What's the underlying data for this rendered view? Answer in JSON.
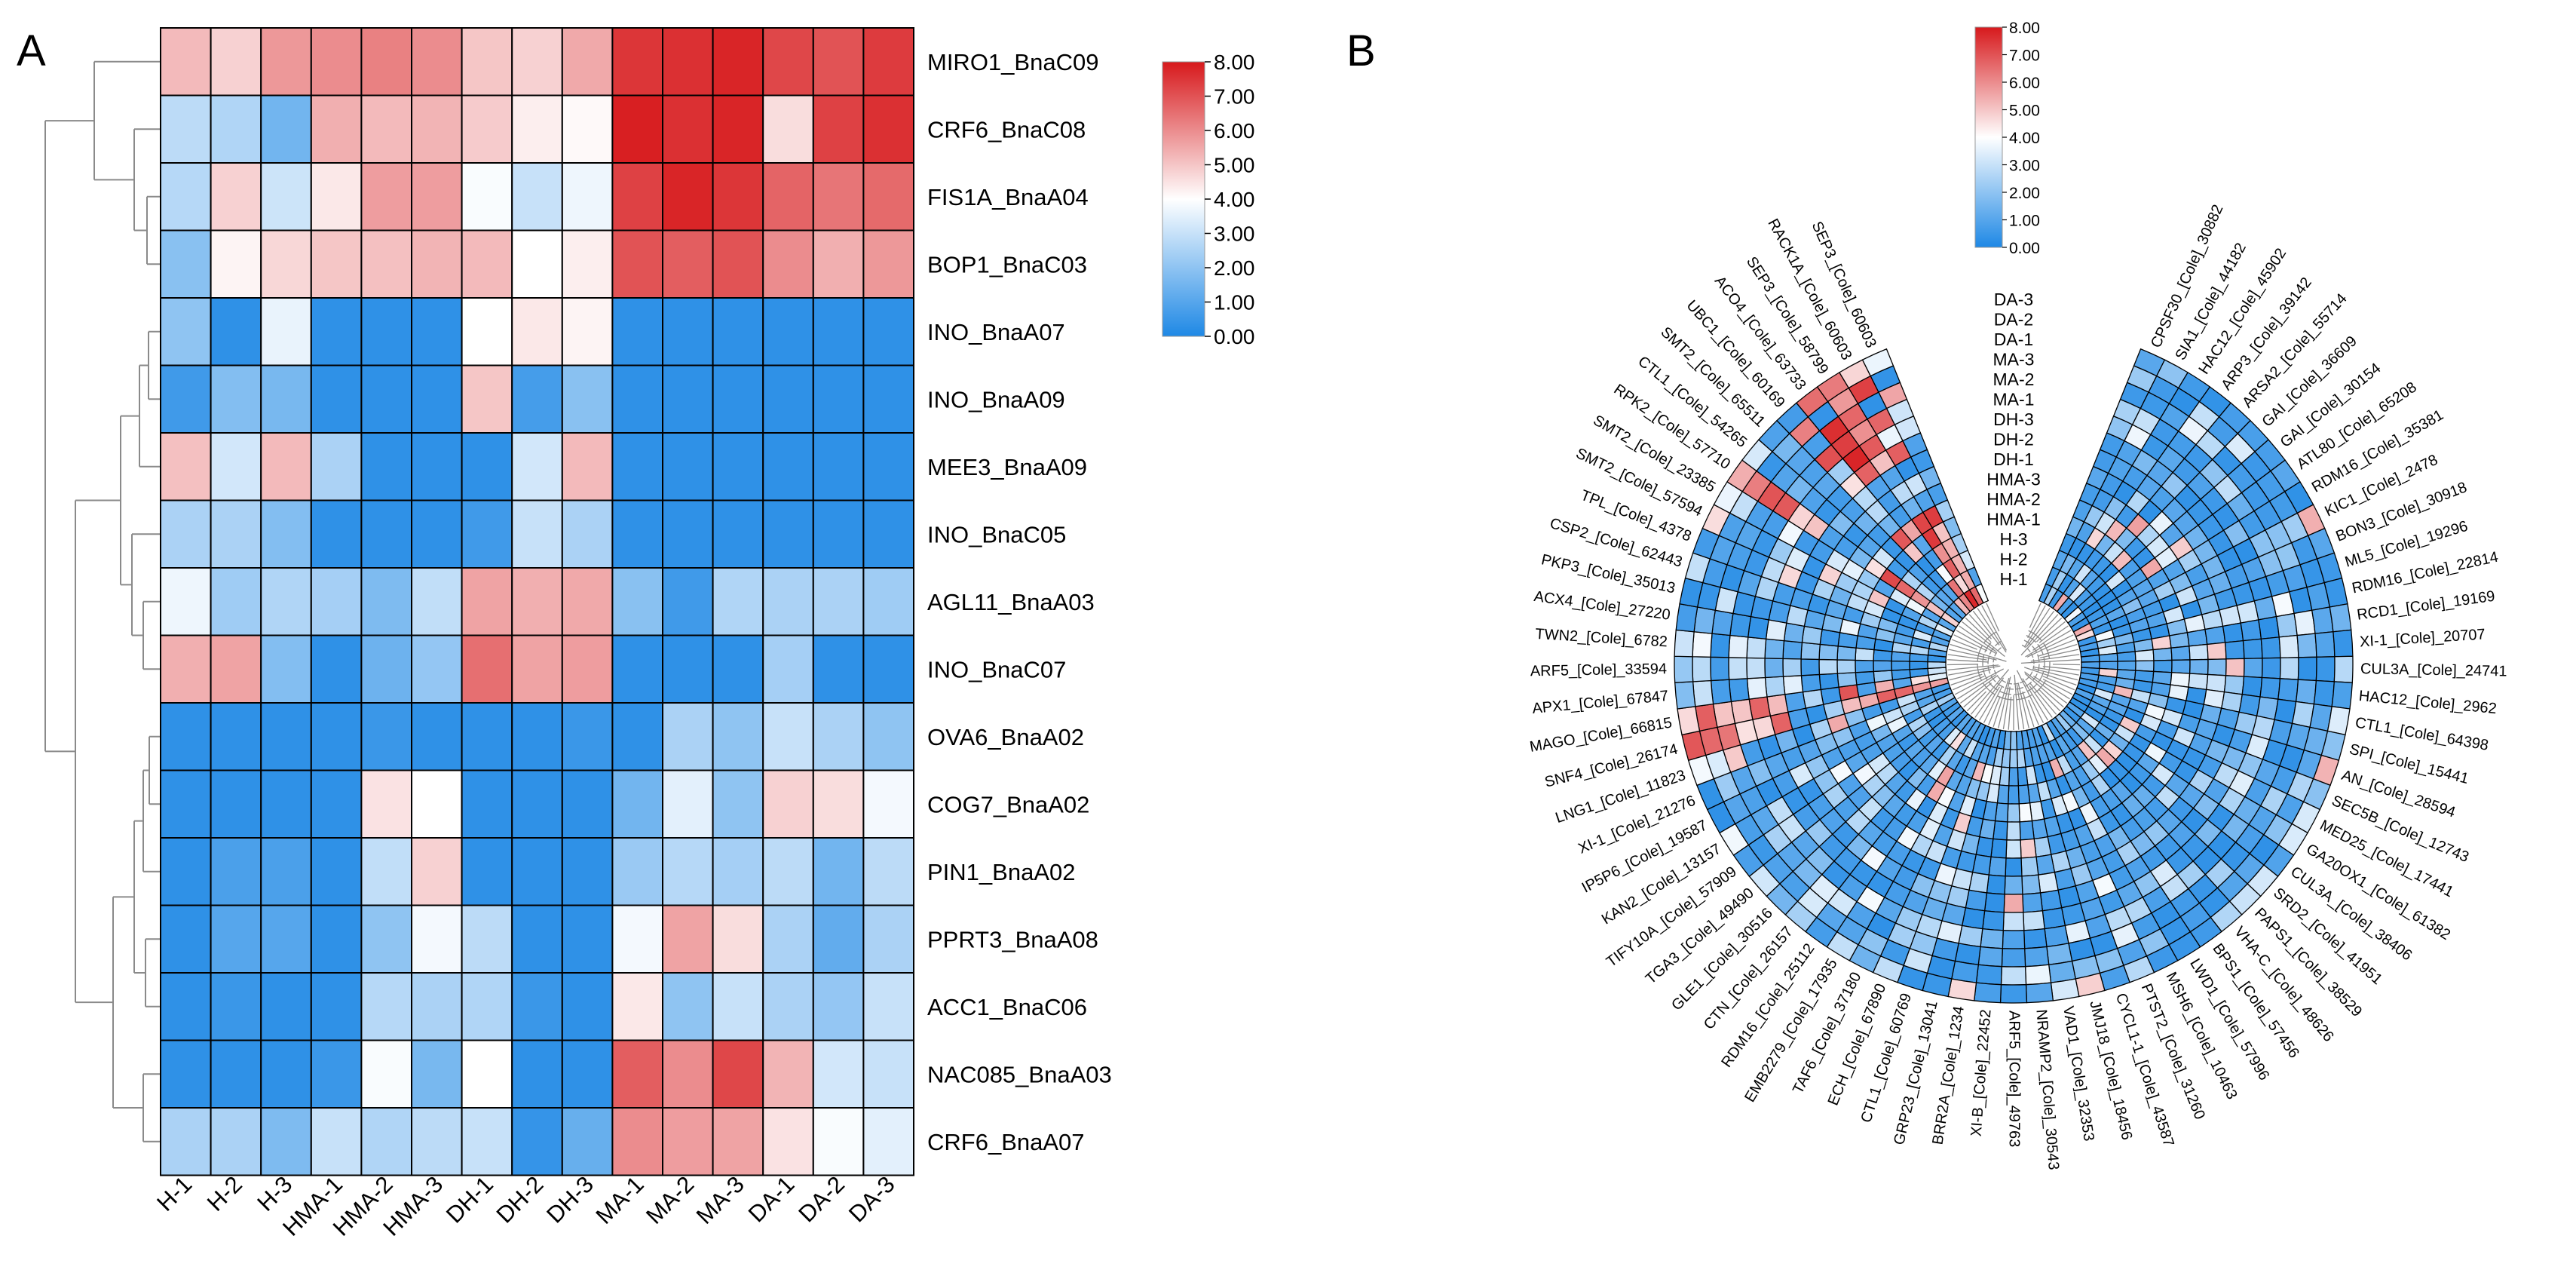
{
  "panels": {
    "a_label": "A",
    "b_label": "B"
  },
  "colors": {
    "low": "#1e88e5",
    "mid": "#ffffff",
    "high": "#d7191c",
    "grid": "#000000"
  },
  "chart_data": [
    {
      "type": "heatmap",
      "title": "",
      "columns": [
        "H-1",
        "H-2",
        "H-3",
        "HMA-1",
        "HMA-2",
        "HMA-3",
        "DH-1",
        "DH-2",
        "DH-3",
        "MA-1",
        "MA-2",
        "MA-3",
        "DA-1",
        "DA-2",
        "DA-3"
      ],
      "rows": [
        "MIRO1_BnaC09",
        "CRF6_BnaC08",
        "FIS1A_BnaA04",
        "BOP1_BnaC03",
        "INO_BnaA07",
        "INO_BnaA09",
        "MEE3_BnaA09",
        "INO_BnaC05",
        "AGL11_BnaA03",
        "INO_BnaC07",
        "OVA6_BnaA02",
        "COG7_BnaA02",
        "PIN1_BnaA02",
        "PPRT3_BnaA08",
        "ACC1_BnaC06",
        "NAC085_BnaA03",
        "CRF6_BnaA07"
      ],
      "values": [
        [
          5.2,
          4.8,
          5.8,
          6.0,
          6.2,
          6.0,
          5.0,
          4.8,
          5.5,
          7.5,
          7.6,
          7.8,
          7.2,
          7.0,
          7.4
        ],
        [
          2.8,
          2.6,
          1.5,
          5.4,
          5.2,
          5.3,
          4.9,
          4.3,
          4.1,
          7.9,
          7.6,
          7.8,
          4.6,
          7.3,
          7.6
        ],
        [
          2.7,
          4.8,
          3.1,
          4.4,
          5.7,
          5.7,
          3.9,
          3.0,
          3.7,
          7.3,
          7.8,
          7.5,
          6.7,
          6.4,
          6.6
        ],
        [
          1.9,
          4.2,
          4.7,
          5.0,
          5.1,
          5.3,
          5.2,
          4.0,
          4.3,
          7.0,
          6.8,
          7.0,
          6.0,
          5.4,
          5.8
        ],
        [
          2.0,
          0.3,
          3.6,
          0.3,
          0.3,
          0.3,
          4.0,
          4.4,
          4.2,
          0.3,
          0.3,
          0.3,
          0.3,
          0.3,
          0.3
        ],
        [
          0.6,
          1.8,
          1.6,
          0.3,
          0.3,
          0.3,
          5.0,
          0.7,
          1.9,
          0.3,
          0.3,
          0.3,
          0.3,
          0.3,
          0.3
        ],
        [
          5.1,
          3.2,
          5.2,
          2.5,
          0.3,
          0.3,
          0.3,
          3.2,
          5.2,
          0.3,
          0.3,
          0.3,
          0.3,
          0.3,
          0.3
        ],
        [
          2.5,
          2.5,
          1.8,
          0.3,
          0.3,
          0.3,
          0.6,
          3.0,
          2.5,
          0.3,
          0.3,
          0.3,
          0.3,
          0.3,
          0.3
        ],
        [
          3.7,
          2.3,
          2.6,
          2.4,
          1.7,
          2.9,
          5.6,
          5.4,
          5.5,
          1.9,
          0.6,
          2.6,
          2.5,
          2.5,
          2.3
        ],
        [
          5.4,
          5.6,
          1.8,
          0.3,
          1.4,
          2.1,
          6.5,
          5.6,
          5.7,
          0.3,
          0.3,
          0.3,
          2.4,
          0.3,
          0.3
        ],
        [
          0.3,
          0.3,
          0.3,
          0.3,
          0.5,
          0.3,
          0.3,
          0.3,
          0.5,
          0.3,
          2.5,
          2.0,
          3.0,
          2.5,
          2.0
        ],
        [
          0.3,
          0.3,
          0.3,
          0.3,
          4.5,
          4.0,
          0.3,
          0.3,
          0.3,
          1.5,
          3.5,
          2.0,
          4.8,
          4.6,
          3.8
        ],
        [
          0.3,
          0.8,
          0.8,
          0.3,
          2.9,
          4.8,
          0.3,
          0.3,
          0.3,
          2.2,
          2.7,
          2.4,
          2.8,
          1.5,
          2.8
        ],
        [
          0.3,
          1.0,
          1.0,
          0.3,
          2.0,
          3.8,
          2.8,
          0.3,
          0.3,
          3.8,
          5.6,
          4.6,
          2.5,
          1.2,
          2.5
        ],
        [
          0.3,
          0.5,
          0.3,
          0.3,
          2.7,
          2.5,
          2.6,
          0.5,
          0.3,
          4.4,
          2.0,
          3.0,
          2.5,
          2.1,
          3.0
        ],
        [
          0.3,
          0.3,
          0.3,
          0.5,
          3.9,
          1.6,
          4.0,
          0.3,
          0.3,
          6.8,
          6.0,
          7.2,
          5.3,
          3.2,
          3.0
        ],
        [
          2.5,
          2.5,
          1.7,
          3.0,
          2.6,
          2.8,
          3.0,
          0.4,
          1.3,
          6.0,
          5.7,
          5.6,
          4.5,
          3.9,
          3.5
        ]
      ],
      "colorbar": {
        "min": 0,
        "max": 8,
        "ticks": [
          "0.00",
          "1.00",
          "2.00",
          "3.00",
          "4.00",
          "5.00",
          "6.00",
          "7.00",
          "8.00"
        ]
      }
    },
    {
      "type": "heatmap",
      "layout": "circular",
      "rings": [
        "H-1",
        "H-2",
        "H-3",
        "HMA-1",
        "HMA-2",
        "HMA-3",
        "DH-1",
        "DH-2",
        "DH-3",
        "MA-1",
        "MA-2",
        "MA-3",
        "DA-1",
        "DA-2",
        "DA-3"
      ],
      "genes": [
        "CPSF30_[Cole]_30882",
        "SIA1_[Cole]_44182",
        "HAC12_[Cole]_45902",
        "ARP3_[Cole]_39142",
        "ARSA2_[Cole]_55714",
        "GAI_[Cole]_36609",
        "GAI_[Cole]_30154",
        "ATL80_[Cole]_65208",
        "RDM16_[Cole]_35381",
        "KIC1_[Cole]_2478",
        "BON3_[Cole]_30918",
        "ML5_[Cole]_19296",
        "RDM16_[Cole]_22814",
        "RCD1_[Cole]_19169",
        "XI-1_[Cole]_20707",
        "CUL3A_[Cole]_24741",
        "HAC12_[Cole]_2962",
        "CTL1_[Cole]_64398",
        "SPI_[Cole]_15441",
        "AN_[Cole]_28594",
        "SEC5B_[Cole]_12743",
        "MED25_[Cole]_17441",
        "GA20OX1_[Cole]_61382",
        "CUL3A_[Cole]_38406",
        "SRD2_[Cole]_41951",
        "PAPS1_[Cole]_38529",
        "VHA-C_[Cole]_48626",
        "BPS1_[Cole]_57456",
        "LWD1_[Cole]_57996",
        "MSH6_[Cole]_10463",
        "PTST2_[Cole]_31260",
        "CYCL1-1_[Cole]_43587",
        "JMJ18_[Cole]_18456",
        "VAD1_[Cole]_32353",
        "NRAMP2_[Cole]_30543",
        "ARF5_[Cole]_49763",
        "XI-B_[Cole]_22452",
        "BRR2A_[Cole]_1234",
        "GRP23_[Cole]_13041",
        "CTL1_[Cole]_60769",
        "ECH_[Cole]_67890",
        "TAF6_[Cole]_37180",
        "EMB2279_[Cole]_17935",
        "RDM16_[Cole]_25112",
        "CTN_[Cole]_26157",
        "GLE1_[Cole]_30516",
        "TGA3_[Cole]_49490",
        "TIFY10A_[Cole]_57909",
        "KAN2_[Cole]_13157",
        "IP5P6_[Cole]_19587",
        "XI-1_[Cole]_21276",
        "LNG1_[Cole]_11823",
        "SNF4_[Cole]_26174",
        "MAGO_[Cole]_66815",
        "APX1_[Cole]_67847",
        "ARF5_[Cole]_33594",
        "TWN2_[Cole]_6782",
        "ACX4_[Cole]_27220",
        "PKP3_[Cole]_35013",
        "CSP2_[Cole]_62443",
        "TPL_[Cole]_4378",
        "SMT2_[Cole]_57594",
        "SMT2_[Cole]_23385",
        "RPK2_[Cole]_57710",
        "CTL1_[Cole]_54265",
        "SMT2_[Cole]_65511",
        "UBC1_[Cole]_60169",
        "ACO4_[Cole]_63733",
        "SEP3_[Cole]_58799",
        "RACK1A_[Cole]_60603",
        "SEP3_[Cole]_60603"
      ],
      "colorbar": {
        "min": 0,
        "max": 8,
        "ticks": [
          "0.00",
          "1.00",
          "2.00",
          "3.00",
          "4.00",
          "5.00",
          "6.00",
          "7.00",
          "8.00"
        ]
      }
    }
  ]
}
